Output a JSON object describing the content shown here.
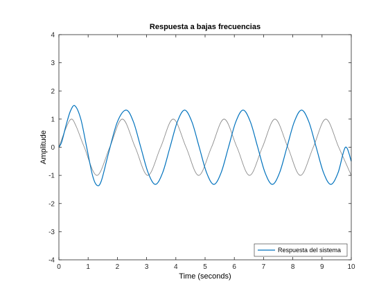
{
  "chart_data": {
    "type": "line",
    "title": "Respuesta a bajas frecuencias",
    "xlabel": "Time (seconds)",
    "ylabel": "Amplitude",
    "xlim": [
      0,
      10
    ],
    "ylim": [
      -4,
      4
    ],
    "xticks": [
      "0",
      "1",
      "2",
      "3",
      "4",
      "5",
      "6",
      "7",
      "8",
      "9",
      "10"
    ],
    "yticks": [
      "-4",
      "-3",
      "-2",
      "-1",
      "0",
      "1",
      "2",
      "3",
      "4"
    ],
    "grid": false,
    "legend_position": "bottom-right",
    "series": [
      {
        "name": "",
        "color": "#8c8c8c",
        "x": [
          0,
          0.25,
          0.43,
          0.6,
          0.87,
          1.3,
          1.74,
          2.17,
          2.61,
          3.04,
          3.48,
          3.91,
          4.35,
          4.78,
          5.22,
          5.65,
          6.09,
          6.52,
          6.96,
          7.39,
          7.83,
          8.26,
          8.7,
          9.13,
          9.57,
          10
        ],
        "y": [
          0,
          0.7,
          1.0,
          0.72,
          0,
          -1.0,
          0,
          1.0,
          0,
          -1.0,
          0,
          1.0,
          0,
          -1.0,
          0,
          1.0,
          0,
          -1.0,
          0,
          1.0,
          0,
          -1.0,
          0,
          1.0,
          0,
          -1.0
        ]
      },
      {
        "name": "Respuesta del sistema",
        "color": "#0072bd",
        "x": [
          0,
          0.1,
          0.25,
          0.4,
          0.55,
          0.75,
          0.95,
          1.15,
          1.3,
          1.45,
          1.7,
          2.0,
          2.3,
          2.55,
          2.8,
          3.05,
          3.3,
          3.55,
          3.8,
          4.05,
          4.3,
          4.55,
          4.8,
          5.05,
          5.3,
          5.55,
          5.8,
          6.05,
          6.3,
          6.55,
          6.8,
          7.05,
          7.3,
          7.55,
          7.8,
          8.05,
          8.3,
          8.55,
          8.8,
          9.05,
          9.3,
          9.55,
          9.8,
          10
        ],
        "y": [
          0,
          0.2,
          0.8,
          1.3,
          1.47,
          1.0,
          0,
          -1.0,
          -1.35,
          -1.2,
          -0.2,
          0.9,
          1.32,
          0.9,
          0,
          -0.9,
          -1.32,
          -0.9,
          0,
          0.9,
          1.32,
          0.9,
          0,
          -0.9,
          -1.32,
          -0.9,
          0,
          0.9,
          1.32,
          0.9,
          0,
          -0.9,
          -1.32,
          -0.9,
          0,
          0.9,
          1.32,
          0.9,
          0,
          -0.9,
          -1.32,
          -0.9,
          0,
          -0.5
        ]
      }
    ]
  }
}
